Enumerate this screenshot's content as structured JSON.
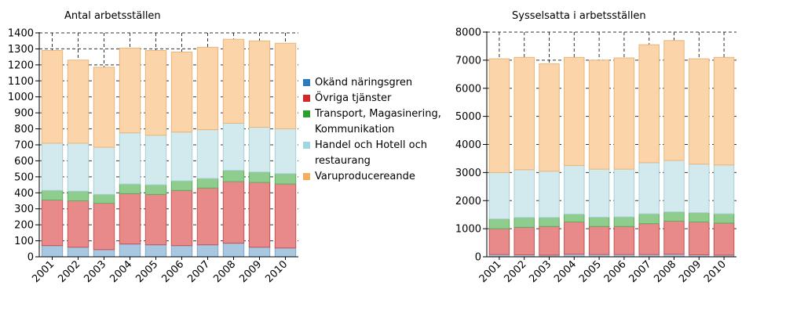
{
  "chart_data": [
    {
      "type": "bar",
      "stacked": true,
      "title": "Antal arbetsställen",
      "categories": [
        "2001",
        "2002",
        "2003",
        "2004",
        "2005",
        "2006",
        "2007",
        "2008",
        "2009",
        "2010"
      ],
      "ylim": [
        0,
        1400
      ],
      "yticks": [
        "0",
        "100",
        "200",
        "300",
        "400",
        "500",
        "600",
        "700",
        "800",
        "900",
        "1000",
        "1100",
        "1200",
        "1300",
        "1400"
      ],
      "grid": true,
      "series": [
        {
          "name": "Okänd näringsgren",
          "values": [
            70,
            60,
            45,
            80,
            75,
            70,
            75,
            85,
            60,
            55
          ]
        },
        {
          "name": "Övriga tjänster",
          "values": [
            285,
            290,
            290,
            315,
            315,
            345,
            355,
            385,
            405,
            400
          ]
        },
        {
          "name": "Transport, Magasinering, Kommunikation",
          "values": [
            60,
            60,
            55,
            60,
            60,
            60,
            60,
            70,
            65,
            65
          ]
        },
        {
          "name": "Handel och Hotell och restaurang",
          "values": [
            295,
            300,
            295,
            320,
            310,
            305,
            305,
            295,
            280,
            280
          ]
        },
        {
          "name": "Varuproducereande",
          "values": [
            580,
            520,
            500,
            530,
            530,
            500,
            515,
            525,
            540,
            535
          ]
        }
      ]
    },
    {
      "type": "bar",
      "stacked": true,
      "title": "Sysselsatta i arbetsställen",
      "categories": [
        "2001",
        "2002",
        "2003",
        "2004",
        "2005",
        "2006",
        "2007",
        "2008",
        "2009",
        "2010"
      ],
      "ylim": [
        0,
        8000
      ],
      "yticks": [
        "0",
        "1000",
        "2000",
        "3000",
        "4000",
        "5000",
        "6000",
        "7000",
        "8000"
      ],
      "grid": true,
      "series": [
        {
          "name": "Okänd näringsgren",
          "values": [
            80,
            70,
            60,
            90,
            80,
            80,
            80,
            90,
            70,
            60
          ]
        },
        {
          "name": "Övriga tjänster",
          "values": [
            920,
            980,
            1020,
            1150,
            1000,
            1000,
            1100,
            1180,
            1170,
            1140
          ]
        },
        {
          "name": "Transport, Magasinering, Kommunikation",
          "values": [
            350,
            350,
            320,
            280,
            330,
            340,
            350,
            330,
            330,
            330
          ]
        },
        {
          "name": "Handel och Hotell och restaurang",
          "values": [
            1650,
            1700,
            1650,
            1730,
            1710,
            1700,
            1820,
            1830,
            1730,
            1740
          ]
        },
        {
          "name": "Varuproducereande",
          "values": [
            4050,
            4000,
            3820,
            3850,
            3880,
            3960,
            4200,
            4270,
            3750,
            3830
          ]
        }
      ]
    }
  ],
  "legend": {
    "items": [
      {
        "label": "Okänd näringsgren",
        "color": "#2a7bbf"
      },
      {
        "label": "Övriga tjänster",
        "color": "#d62728"
      },
      {
        "label": "Transport, Magasinering, Kommunikation",
        "color": "#2ca02c"
      },
      {
        "label": "Handel och Hotell och restaurang",
        "color": "#9fd6e0"
      },
      {
        "label": "Varuproducereande",
        "color": "#f7ad5c"
      }
    ]
  },
  "colors": {
    "fills": [
      "#a7c8e0",
      "#e88a8a",
      "#8fcd8f",
      "#d2eaed",
      "#fbd5a9"
    ],
    "strokes": [
      "#7aa7c7",
      "#c25454",
      "#5fae5f",
      "#a9d0d6",
      "#e8b57b"
    ]
  }
}
